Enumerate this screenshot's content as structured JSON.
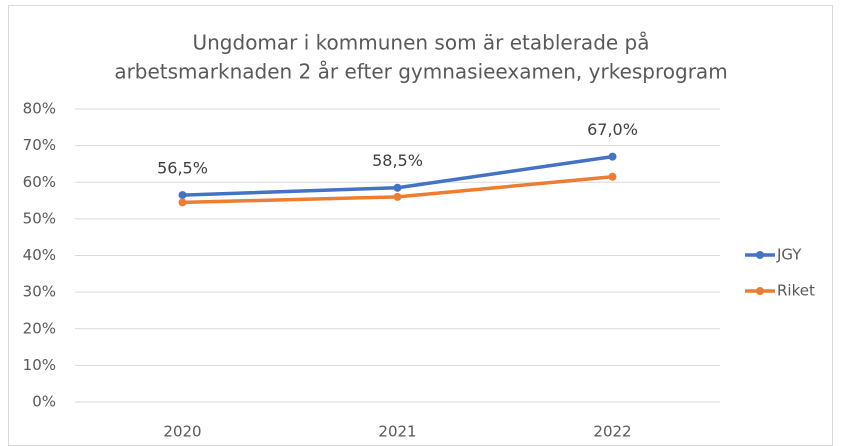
{
  "chart_data": {
    "type": "line",
    "title": [
      "Ungdomar i kommunen som är etablerade på",
      "arbetsmarknaden 2 år efter gymnasieexamen, yrkesprogram"
    ],
    "categories": [
      "2020",
      "2021",
      "2022"
    ],
    "series": [
      {
        "name": "JGY",
        "color": "#4472c4",
        "values": [
          56.5,
          58.5,
          67.0
        ],
        "value_labels": [
          "56,5%",
          "58,5%",
          "67,0%"
        ]
      },
      {
        "name": "Riket",
        "color": "#ed7d31",
        "values": [
          54.5,
          56.0,
          61.5
        ]
      }
    ],
    "ylim": [
      0,
      80
    ],
    "yticks": [
      {
        "value": 0,
        "label": "0%"
      },
      {
        "value": 10,
        "label": "10%"
      },
      {
        "value": 20,
        "label": "20%"
      },
      {
        "value": 30,
        "label": "30%"
      },
      {
        "value": 40,
        "label": "40%"
      },
      {
        "value": 50,
        "label": "50%"
      },
      {
        "value": 60,
        "label": "60%"
      },
      {
        "value": 70,
        "label": "70%"
      },
      {
        "value": 80,
        "label": "80%"
      }
    ],
    "grid": true,
    "legend": "right"
  }
}
